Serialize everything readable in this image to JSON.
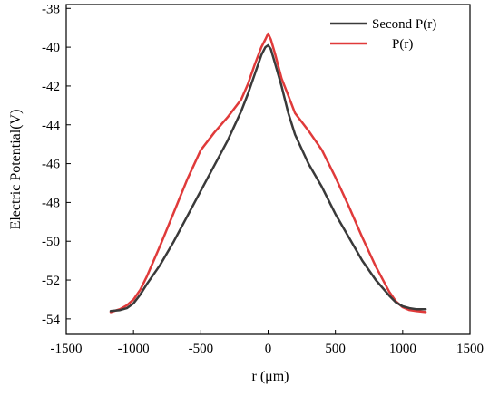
{
  "chart_data": {
    "type": "line",
    "xlabel": "r (μm)",
    "ylabel": "Electric Potential(V)",
    "xlim": [
      -1500,
      1500
    ],
    "ylim": [
      -54.8,
      -37.8
    ],
    "x_ticks": [
      "-1500",
      "-1000",
      "-500",
      "0",
      "500",
      "1000",
      "1500"
    ],
    "y_ticks": [
      "-38",
      "-40",
      "-42",
      "-44",
      "-46",
      "-48",
      "-50",
      "-52",
      "-54"
    ],
    "legend_position": "top-right",
    "series": [
      {
        "name": "Second  P(r)",
        "color": "#3a3a3a",
        "x": [
          -1170,
          -1100,
          -1050,
          -1000,
          -950,
          -900,
          -800,
          -700,
          -600,
          -500,
          -400,
          -300,
          -200,
          -150,
          -100,
          -50,
          -20,
          0,
          20,
          50,
          100,
          150,
          200,
          300,
          400,
          500,
          600,
          700,
          800,
          900,
          950,
          1000,
          1050,
          1100,
          1170
        ],
        "y": [
          -53.6,
          -53.55,
          -53.45,
          -53.2,
          -52.75,
          -52.2,
          -51.2,
          -50.0,
          -48.7,
          -47.4,
          -46.1,
          -44.8,
          -43.3,
          -42.4,
          -41.4,
          -40.4,
          -40.0,
          -39.9,
          -40.1,
          -40.8,
          -42.0,
          -43.4,
          -44.5,
          -46.0,
          -47.2,
          -48.6,
          -49.8,
          -51.0,
          -52.0,
          -52.8,
          -53.15,
          -53.35,
          -53.45,
          -53.5,
          -53.5
        ]
      },
      {
        "name": "P(r)",
        "color": "#e03a3a",
        "x": [
          -1170,
          -1100,
          -1050,
          -1000,
          -950,
          -900,
          -800,
          -700,
          -600,
          -500,
          -400,
          -300,
          -200,
          -150,
          -100,
          -50,
          -20,
          0,
          20,
          50,
          100,
          150,
          200,
          300,
          400,
          500,
          600,
          700,
          800,
          900,
          950,
          1000,
          1050,
          1100,
          1170
        ],
        "y": [
          -53.65,
          -53.5,
          -53.3,
          -53.0,
          -52.5,
          -51.8,
          -50.2,
          -48.5,
          -46.8,
          -45.3,
          -44.4,
          -43.6,
          -42.7,
          -41.9,
          -40.9,
          -40.0,
          -39.6,
          -39.3,
          -39.6,
          -40.3,
          -41.6,
          -42.5,
          -43.4,
          -44.3,
          -45.3,
          -46.7,
          -48.2,
          -49.8,
          -51.3,
          -52.6,
          -53.1,
          -53.4,
          -53.55,
          -53.6,
          -53.65
        ]
      }
    ]
  }
}
